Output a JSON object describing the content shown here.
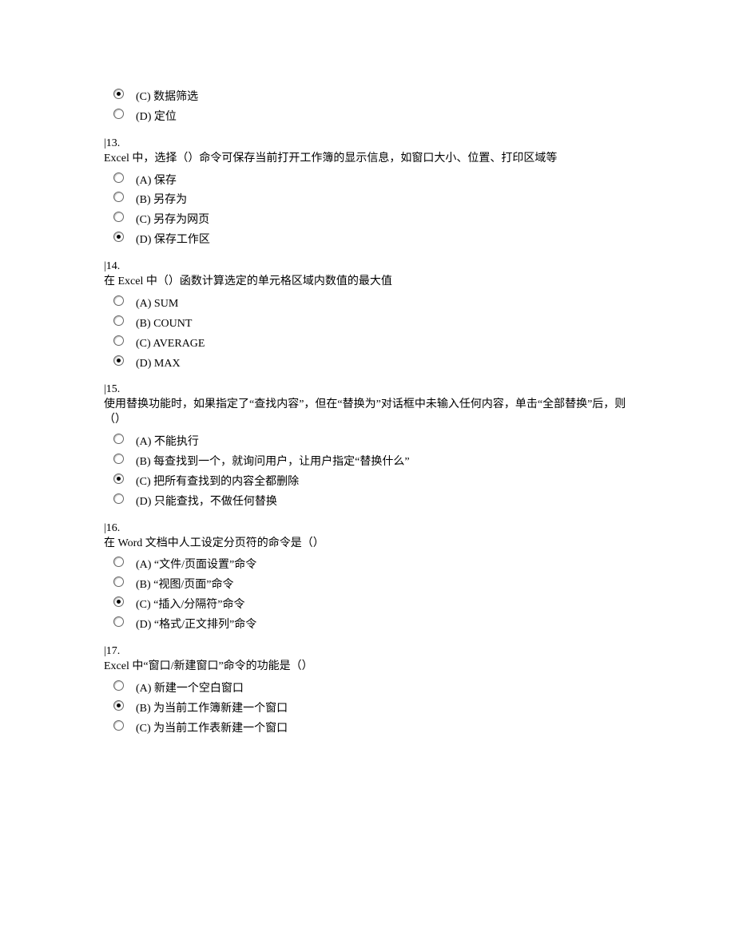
{
  "page": {
    "background_color": "#ffffff",
    "text_color": "#000000",
    "font_family": "SimSun",
    "font_size_pt": 11
  },
  "leading_options": {
    "items": [
      {
        "label": "(C)  数据筛选",
        "checked": true
      },
      {
        "label": "(D)  定位",
        "checked": false
      }
    ]
  },
  "questions": [
    {
      "number": "|13.",
      "text": "Excel 中，选择（）命令可保存当前打开工作簿的显示信息，如窗口大小、位置、打印区域等",
      "options": [
        {
          "label": "(A)  保存",
          "checked": false
        },
        {
          "label": "(B)  另存为",
          "checked": false
        },
        {
          "label": "(C)  另存为网页",
          "checked": false
        },
        {
          "label": "(D)  保存工作区",
          "checked": true
        }
      ]
    },
    {
      "number": "|14.",
      "text": "在 Excel 中（）函数计算选定的单元格区域内数值的最大值",
      "options": [
        {
          "label": "(A) SUM",
          "checked": false
        },
        {
          "label": "(B) COUNT",
          "checked": false
        },
        {
          "label": "(C) AVERAGE",
          "checked": false
        },
        {
          "label": "(D) MAX",
          "checked": true
        }
      ]
    },
    {
      "number": "|15.",
      "text": "使用替换功能时，如果指定了“查找内容”，但在“替换为”对话框中未输入任何内容，单击“全部替换”后，则（）",
      "options": [
        {
          "label": "(A)  不能执行",
          "checked": false
        },
        {
          "label": "(B)  每查找到一个，就询问用户，让用户指定“替换什么”",
          "checked": false
        },
        {
          "label": "(C)  把所有查找到的内容全都删除",
          "checked": true
        },
        {
          "label": "(D)  只能查找，不做任何替换",
          "checked": false
        }
      ]
    },
    {
      "number": "|16.",
      "text": "在 Word 文档中人工设定分页符的命令是（）",
      "options": [
        {
          "label": "(A) “文件/页面设置”命令",
          "checked": false
        },
        {
          "label": "(B) “视图/页面”命令",
          "checked": false
        },
        {
          "label": "(C) “插入/分隔符”命令",
          "checked": true
        },
        {
          "label": "(D) “格式/正文排列”命令",
          "checked": false
        }
      ]
    },
    {
      "number": "|17.",
      "text": "Excel 中“窗口/新建窗口”命令的功能是（）",
      "options": [
        {
          "label": "(A)  新建一个空白窗口",
          "checked": false
        },
        {
          "label": "(B)  为当前工作簿新建一个窗口",
          "checked": true
        },
        {
          "label": "(C)  为当前工作表新建一个窗口",
          "checked": false
        }
      ]
    }
  ]
}
